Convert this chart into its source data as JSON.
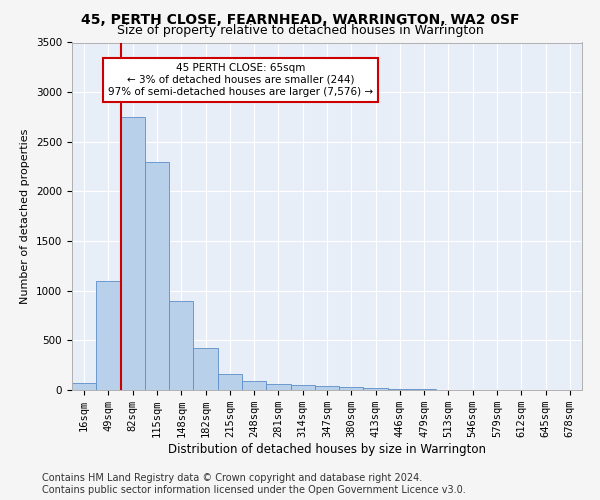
{
  "title": "45, PERTH CLOSE, FEARNHEAD, WARRINGTON, WA2 0SF",
  "subtitle": "Size of property relative to detached houses in Warrington",
  "xlabel": "Distribution of detached houses by size in Warrington",
  "ylabel": "Number of detached properties",
  "bar_color": "#b8d0ea",
  "bar_edge_color": "#5b8fc9",
  "background_color": "#e8eef8",
  "grid_color": "#ffffff",
  "annotation_box_text": "45 PERTH CLOSE: 65sqm\n← 3% of detached houses are smaller (244)\n97% of semi-detached houses are larger (7,576) →",
  "annotation_box_color": "#ffffff",
  "annotation_box_edge_color": "#cc0000",
  "vline_color": "#cc0000",
  "vline_x": 1.5,
  "categories": [
    "16sqm",
    "49sqm",
    "82sqm",
    "115sqm",
    "148sqm",
    "182sqm",
    "215sqm",
    "248sqm",
    "281sqm",
    "314sqm",
    "347sqm",
    "380sqm",
    "413sqm",
    "446sqm",
    "479sqm",
    "513sqm",
    "546sqm",
    "579sqm",
    "612sqm",
    "645sqm",
    "678sqm"
  ],
  "values": [
    70,
    1100,
    2750,
    2300,
    900,
    420,
    160,
    95,
    65,
    50,
    40,
    30,
    20,
    10,
    8,
    5,
    4,
    3,
    2,
    2,
    1
  ],
  "ylim": [
    0,
    3500
  ],
  "yticks": [
    0,
    500,
    1000,
    1500,
    2000,
    2500,
    3000,
    3500
  ],
  "footer_text": "Contains HM Land Registry data © Crown copyright and database right 2024.\nContains public sector information licensed under the Open Government Licence v3.0.",
  "title_fontsize": 10,
  "subtitle_fontsize": 9,
  "xlabel_fontsize": 8.5,
  "ylabel_fontsize": 8,
  "tick_fontsize": 7.5,
  "footer_fontsize": 7,
  "annot_fontsize": 7.5
}
